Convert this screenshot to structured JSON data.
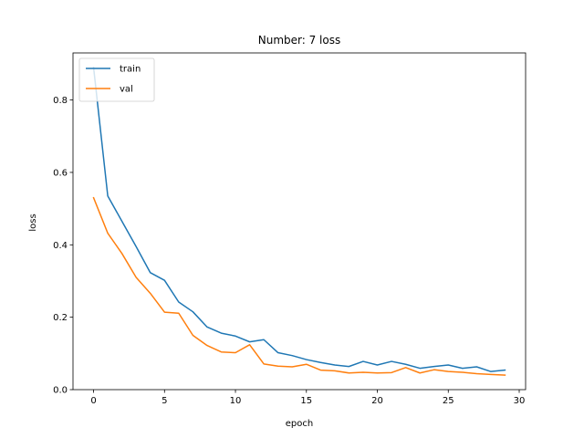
{
  "chart_data": {
    "type": "line",
    "title": "Number: 7 loss",
    "xlabel": "epoch",
    "ylabel": "loss",
    "xlim": [
      -1.45,
      30.45
    ],
    "ylim": [
      0,
      0.93
    ],
    "xticks": [
      0,
      5,
      10,
      15,
      20,
      25,
      30
    ],
    "yticks": [
      0.0,
      0.2,
      0.4,
      0.6,
      0.8
    ],
    "grid": false,
    "legend": "top-left",
    "x": [
      0,
      1,
      2,
      3,
      4,
      5,
      6,
      7,
      8,
      9,
      10,
      11,
      12,
      13,
      14,
      15,
      16,
      17,
      18,
      19,
      20,
      21,
      22,
      23,
      24,
      25,
      26,
      27,
      28,
      29
    ],
    "series": [
      {
        "name": "train",
        "color": "#1f77b4",
        "values": [
          0.89,
          0.535,
          0.465,
          0.395,
          0.323,
          0.302,
          0.242,
          0.215,
          0.173,
          0.156,
          0.148,
          0.132,
          0.138,
          0.102,
          0.094,
          0.083,
          0.075,
          0.068,
          0.064,
          0.078,
          0.068,
          0.078,
          0.07,
          0.059,
          0.064,
          0.068,
          0.059,
          0.063,
          0.05,
          0.054
        ]
      },
      {
        "name": "val",
        "color": "#ff7f0e",
        "values": [
          0.53,
          0.432,
          0.376,
          0.31,
          0.266,
          0.214,
          0.211,
          0.15,
          0.122,
          0.104,
          0.102,
          0.124,
          0.071,
          0.065,
          0.063,
          0.07,
          0.054,
          0.052,
          0.046,
          0.048,
          0.046,
          0.047,
          0.061,
          0.046,
          0.055,
          0.05,
          0.048,
          0.044,
          0.042,
          0.04
        ]
      }
    ]
  }
}
